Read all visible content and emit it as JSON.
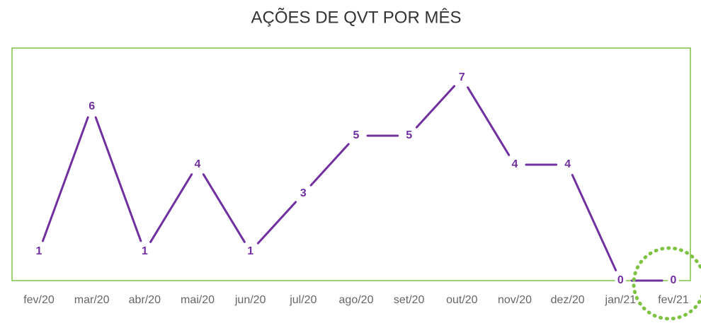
{
  "chart_data": {
    "type": "line",
    "title": "AÇÕES DE QVT POR MÊS",
    "categories": [
      "fev/20",
      "mar/20",
      "abr/20",
      "mai/20",
      "jun/20",
      "jul/20",
      "ago/20",
      "set/20",
      "out/20",
      "nov/20",
      "dez/20",
      "jan/21",
      "fev/21"
    ],
    "values": [
      1,
      6,
      1,
      4,
      1,
      3,
      5,
      5,
      7,
      4,
      4,
      0,
      0
    ],
    "color": "#7030a0"
  }
}
